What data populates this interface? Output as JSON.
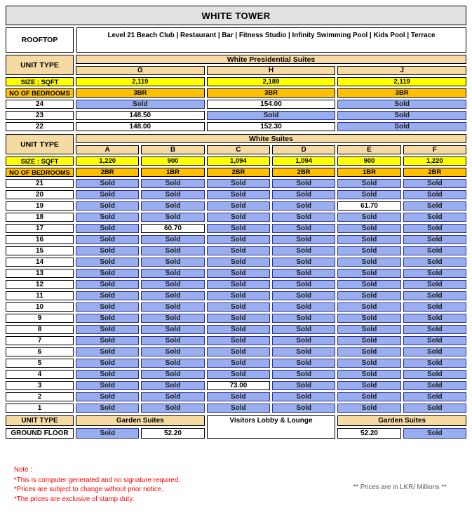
{
  "title": "WHITE TOWER",
  "rooftop": {
    "label": "ROOFTOP",
    "amenities": "Level 21 Beach Club | Restaurant | Bar | Fitness Studio | Infinity Swimming Pool | Kids Pool | Terrace"
  },
  "labels": {
    "unit_type": "UNIT TYPE",
    "size_sqft": "SIZE : SQFT",
    "bedrooms": "NO OF BEDROOMS",
    "ground_floor": "GROUND FLOOR",
    "sold": "Sold"
  },
  "presidential": {
    "section_title": "White Presidential Suites",
    "units": [
      "G",
      "H",
      "J"
    ],
    "sizes": [
      "2,119",
      "2,189",
      "2,119"
    ],
    "bedrooms": [
      "3BR",
      "3BR",
      "3BR"
    ],
    "floors": [
      {
        "floor": "24",
        "cells": [
          "Sold",
          "154.00",
          "Sold"
        ]
      },
      {
        "floor": "23",
        "cells": [
          "148.50",
          "Sold",
          "Sold"
        ]
      },
      {
        "floor": "22",
        "cells": [
          "148.00",
          "152.30",
          "Sold"
        ]
      }
    ]
  },
  "suites": {
    "section_title": "White Suites",
    "units": [
      "A",
      "B",
      "C",
      "D",
      "E",
      "F"
    ],
    "sizes": [
      "1,220",
      "900",
      "1,094",
      "1,094",
      "900",
      "1,220"
    ],
    "bedrooms": [
      "2BR",
      "1BR",
      "2BR",
      "2BR",
      "1BR",
      "2BR"
    ],
    "floors": [
      {
        "floor": "21",
        "cells": [
          "Sold",
          "Sold",
          "Sold",
          "Sold",
          "Sold",
          "Sold"
        ]
      },
      {
        "floor": "20",
        "cells": [
          "Sold",
          "Sold",
          "Sold",
          "Sold",
          "Sold",
          "Sold"
        ]
      },
      {
        "floor": "19",
        "cells": [
          "Sold",
          "Sold",
          "Sold",
          "Sold",
          "61.70",
          "Sold"
        ]
      },
      {
        "floor": "18",
        "cells": [
          "Sold",
          "Sold",
          "Sold",
          "Sold",
          "Sold",
          "Sold"
        ]
      },
      {
        "floor": "17",
        "cells": [
          "Sold",
          "60.70",
          "Sold",
          "Sold",
          "Sold",
          "Sold"
        ]
      },
      {
        "floor": "16",
        "cells": [
          "Sold",
          "Sold",
          "Sold",
          "Sold",
          "Sold",
          "Sold"
        ]
      },
      {
        "floor": "15",
        "cells": [
          "Sold",
          "Sold",
          "Sold",
          "Sold",
          "Sold",
          "Sold"
        ]
      },
      {
        "floor": "14",
        "cells": [
          "Sold",
          "Sold",
          "Sold",
          "Sold",
          "Sold",
          "Sold"
        ]
      },
      {
        "floor": "13",
        "cells": [
          "Sold",
          "Sold",
          "Sold",
          "Sold",
          "Sold",
          "Sold"
        ]
      },
      {
        "floor": "12",
        "cells": [
          "Sold",
          "Sold",
          "Sold",
          "Sold",
          "Sold",
          "Sold"
        ]
      },
      {
        "floor": "11",
        "cells": [
          "Sold",
          "Sold",
          "Sold",
          "Sold",
          "Sold",
          "Sold"
        ]
      },
      {
        "floor": "10",
        "cells": [
          "Sold",
          "Sold",
          "Sold",
          "Sold",
          "Sold",
          "Sold"
        ]
      },
      {
        "floor": "9",
        "cells": [
          "Sold",
          "Sold",
          "Sold",
          "Sold",
          "Sold",
          "Sold"
        ]
      },
      {
        "floor": "8",
        "cells": [
          "Sold",
          "Sold",
          "Sold",
          "Sold",
          "Sold",
          "Sold"
        ]
      },
      {
        "floor": "7",
        "cells": [
          "Sold",
          "Sold",
          "Sold",
          "Sold",
          "Sold",
          "Sold"
        ]
      },
      {
        "floor": "6",
        "cells": [
          "Sold",
          "Sold",
          "Sold",
          "Sold",
          "Sold",
          "Sold"
        ]
      },
      {
        "floor": "5",
        "cells": [
          "Sold",
          "Sold",
          "Sold",
          "Sold",
          "Sold",
          "Sold"
        ]
      },
      {
        "floor": "4",
        "cells": [
          "Sold",
          "Sold",
          "Sold",
          "Sold",
          "Sold",
          "Sold"
        ]
      },
      {
        "floor": "3",
        "cells": [
          "Sold",
          "Sold",
          "73.00",
          "Sold",
          "Sold",
          "Sold"
        ]
      },
      {
        "floor": "2",
        "cells": [
          "Sold",
          "Sold",
          "Sold",
          "Sold",
          "Sold",
          "Sold"
        ]
      },
      {
        "floor": "1",
        "cells": [
          "Sold",
          "Sold",
          "Sold",
          "Sold",
          "Sold",
          "Sold"
        ]
      }
    ]
  },
  "ground": {
    "garden_left": "Garden Suites",
    "lobby": "Visitors Lobby & Lounge",
    "garden_right": "Garden Suites",
    "cells_left": [
      "Sold",
      "52.20"
    ],
    "cells_right": [
      "52.20",
      "Sold"
    ]
  },
  "notes": {
    "heading": "Note :",
    "lines": [
      "*This is computer generated and no signature required.",
      "*Prices are subject to change without prior notice.",
      "*The prices are exclusive of stamp duty."
    ],
    "prices_note": "** Prices are in LKR/ Millions **"
  },
  "colors": {
    "header_gray": "#E2E2E2",
    "tan": "#F5DBA3",
    "yellow": "#FFFF00",
    "orange": "#FFC000",
    "sold_blue": "#99AEEE",
    "sold_border": "#2d2d96",
    "note_red": "#FF0000",
    "prices_note_gray": "#595959"
  }
}
